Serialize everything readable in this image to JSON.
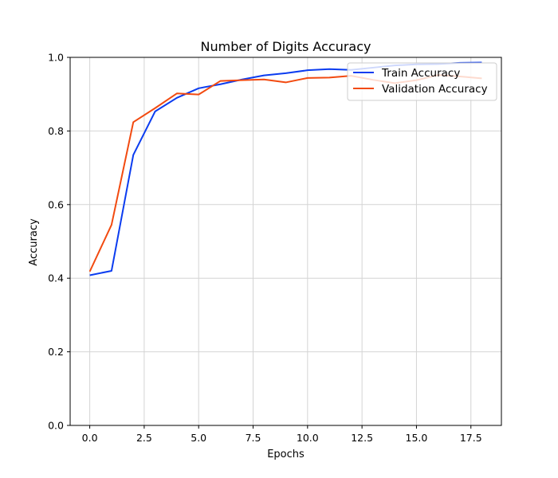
{
  "chart_data": {
    "type": "line",
    "title": "Number of Digits Accuracy",
    "xlabel": "Epochs",
    "ylabel": "Accuracy",
    "xlim": [
      -0.9,
      18.9
    ],
    "ylim": [
      0.0,
      1.0
    ],
    "xticks": [
      0.0,
      2.5,
      5.0,
      7.5,
      10.0,
      12.5,
      15.0,
      17.5
    ],
    "xtick_labels": [
      "0.0",
      "2.5",
      "5.0",
      "7.5",
      "10.0",
      "12.5",
      "15.0",
      "17.5"
    ],
    "yticks": [
      0.0,
      0.2,
      0.4,
      0.6,
      0.8,
      1.0
    ],
    "ytick_labels": [
      "0.0",
      "0.2",
      "0.4",
      "0.6",
      "0.8",
      "1.0"
    ],
    "grid": true,
    "legend_position": "top-right",
    "x": [
      0,
      1,
      2,
      3,
      4,
      5,
      6,
      7,
      8,
      9,
      10,
      11,
      12,
      13,
      14,
      15,
      16,
      17,
      18
    ],
    "series": [
      {
        "name": "Train Accuracy",
        "color": "#0b3cf0",
        "values": [
          0.408,
          0.42,
          0.735,
          0.853,
          0.89,
          0.916,
          0.927,
          0.94,
          0.951,
          0.957,
          0.965,
          0.968,
          0.966,
          0.972,
          0.978,
          0.981,
          0.982,
          0.985,
          0.986
        ]
      },
      {
        "name": "Validation Accuracy",
        "color": "#f24a10",
        "values": [
          0.418,
          0.545,
          0.824,
          0.862,
          0.902,
          0.899,
          0.936,
          0.938,
          0.94,
          0.932,
          0.944,
          0.945,
          0.95,
          0.939,
          0.93,
          0.938,
          0.952,
          0.948,
          0.943
        ]
      }
    ]
  }
}
